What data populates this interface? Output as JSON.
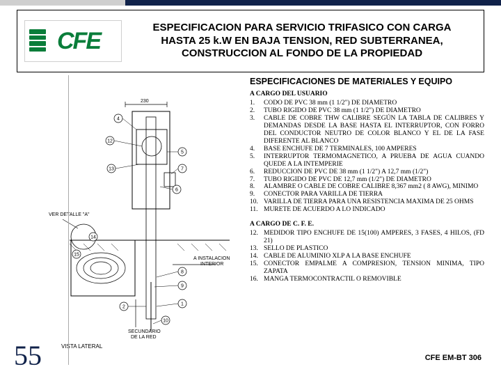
{
  "colors": {
    "navy": "#10224a",
    "grey": "#cfcfcf",
    "green": "#0a7d3a",
    "text": "#000000",
    "bg": "#ffffff"
  },
  "logo_text": "CFE",
  "title_lines": [
    "ESPECIFICACION PARA SERVICIO TRIFASICO CON CARGA",
    "HASTA 25 k.W EN BAJA TENSION, RED SUBTERRANEA,",
    "CONSTRUCCION AL FONDO DE LA PROPIEDAD"
  ],
  "spec_title": "ESPECIFICACIONES DE MATERIALES Y EQUIPO",
  "user_title": "A CARGO DEL USUARIO",
  "user_items": [
    {
      "n": "1.",
      "t": "CODO DE PVC 38 mm (1 1/2\") DE DIAMETRO"
    },
    {
      "n": "2.",
      "t": "TUBO RIGIDO DE PVC 38 mm (1 1/2\") DE DIAMETRO"
    },
    {
      "n": "3.",
      "t": "CABLE DE COBRE THW CALIBRE SEGÚN LA TABLA DE CALIBRES Y DEMANDAS DESDE LA BASE HASTA EL INTERRUPTOR, CON FORRO DEL CONDUCTOR NEUTRO DE COLOR BLANCO Y EL DE LA FASE DIFERENTE AL BLANCO"
    },
    {
      "n": "4.",
      "t": "BASE ENCHUFE DE 7 TERMINALES, 100 AMPERES"
    },
    {
      "n": "5.",
      "t": "INTERRUPTOR TERMOMAGNETICO, A PRUEBA DE AGUA CUANDO QUEDE A LA INTEMPERIE"
    },
    {
      "n": "6.",
      "t": "REDUCCION DE PVC DE 38 mm (1 1/2\") A 12,7 mm (1/2\")"
    },
    {
      "n": "7.",
      "t": "TUBO RIGIDO DE PVC DE 12,7 mm (1/2\") DE DIAMETRO"
    },
    {
      "n": "8.",
      "t": "ALAMBRE O CABLE DE COBRE CALIBRE 8,367 mm2 ( 8 AWG), MINIMO"
    },
    {
      "n": "9.",
      "t": "CONECTOR PARA VARILLA DE TIERRA"
    },
    {
      "n": "10.",
      "t": "VARILLA DE TIERRA PARA UNA RESISTENCIA MAXIMA DE 25 OHMS"
    },
    {
      "n": "11.",
      "t": "MURETE DE ACUERDO A LO INDICADO"
    }
  ],
  "cfe_title": "A CARGO DE C. F. E.",
  "cfe_items": [
    {
      "n": "12.",
      "t": "MEDIDOR TIPO ENCHUFE DE 15(100) AMPERES, 3 FASES, 4 HILOS, (FD 21)"
    },
    {
      "n": "13.",
      "t": "SELLO DE PLASTICO"
    },
    {
      "n": "14.",
      "t": "CABLE DE ALUMINIO XLP A LA BASE ENCHUFE"
    },
    {
      "n": "15.",
      "t": "CONECTOR EMPALME A COMPRESION, TENSION MINIMA, TIPO ZAPATA"
    },
    {
      "n": "16.",
      "t": "MANGA TERMOCONTRACTIL O REMOVIBLE"
    }
  ],
  "diagram_labels": {
    "dim_top": "230",
    "ver_detalle": "VER DETALLE \"A\"",
    "vista_lateral": "VISTA LATERAL",
    "a_instalacion": "A INSTALACION INTERIOR",
    "secundario": "SECUNDARIO DE LA RED",
    "callouts": [
      "1",
      "2",
      "4",
      "5",
      "6",
      "7",
      "8",
      "9",
      "10",
      "12",
      "13",
      "14",
      "15"
    ]
  },
  "slide_number": "55",
  "foot_code": "CFE EM-BT 306"
}
